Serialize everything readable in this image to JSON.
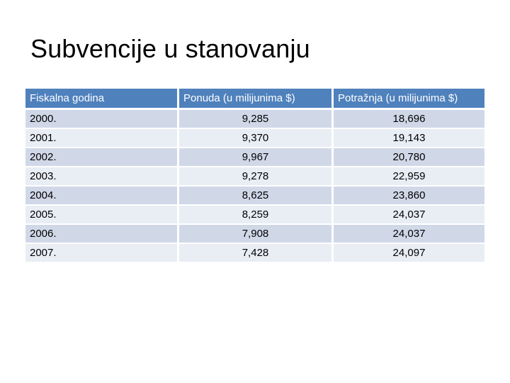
{
  "slide": {
    "title": "Subvencije u stanovanju"
  },
  "table": {
    "headers": [
      "Fiskalna godina",
      "Ponuda (u milijunima $)",
      "Potražnja (u milijunima $)"
    ],
    "rows": [
      {
        "year": "2000.",
        "supply": "9,285",
        "demand": "18,696"
      },
      {
        "year": "2001.",
        "supply": "9,370",
        "demand": "19,143"
      },
      {
        "year": "2002.",
        "supply": "9,967",
        "demand": "20,780"
      },
      {
        "year": "2003.",
        "supply": "9,278",
        "demand": "22,959"
      },
      {
        "year": "2004.",
        "supply": "8,625",
        "demand": "23,860"
      },
      {
        "year": "2005.",
        "supply": "8,259",
        "demand": "24,037"
      },
      {
        "year": "2006.",
        "supply": "7,908",
        "demand": "24,037"
      },
      {
        "year": "2007.",
        "supply": "7,428",
        "demand": "24,097"
      }
    ]
  },
  "colors": {
    "header_bg": "#4f81bd",
    "row_odd_bg": "#d0d8e8",
    "row_even_bg": "#e9edf4"
  }
}
